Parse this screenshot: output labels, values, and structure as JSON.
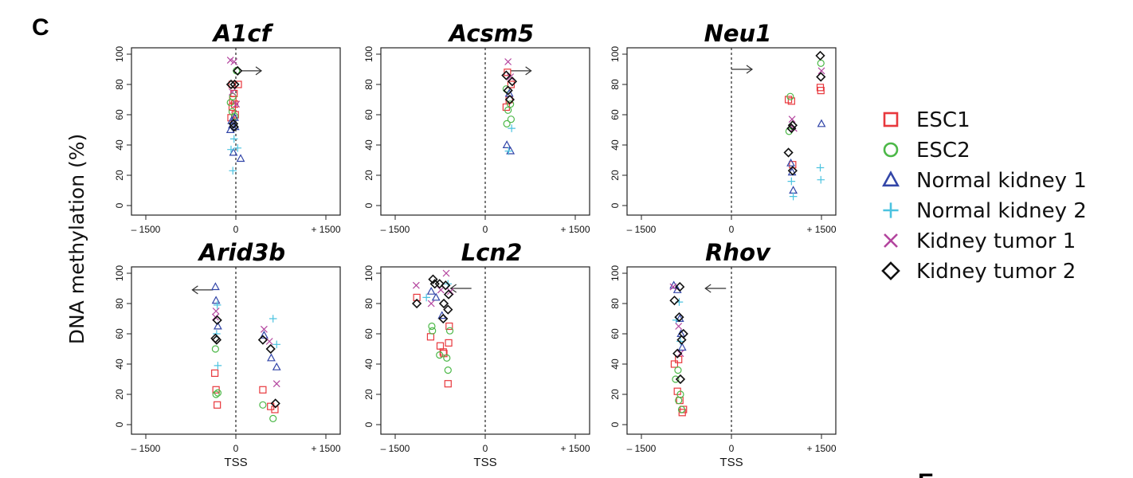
{
  "figure": {
    "panel_letter": "C",
    "next_panel_letter": "E",
    "ylabel": "DNA methylation (%)",
    "xlabel": "TSS"
  },
  "legend": [
    {
      "name": "ESC1",
      "marker": "square",
      "color": "#e8383d"
    },
    {
      "name": "ESC2",
      "marker": "circle",
      "color": "#4cb848"
    },
    {
      "name": "Normal kidney 1",
      "marker": "triangle",
      "color": "#3346a8"
    },
    {
      "name": "Normal kidney 2",
      "marker": "plus",
      "color": "#4cc3e0"
    },
    {
      "name": "Kidney tumor 1",
      "marker": "cross",
      "color": "#b3449e"
    },
    {
      "name": "Kidney tumor 2",
      "marker": "diamond",
      "color": "#111111"
    }
  ],
  "chart_data": [
    {
      "type": "scatter",
      "title": "A1cf",
      "xlim": [
        -1500,
        1500
      ],
      "ylim": [
        0,
        100
      ],
      "xticks": [
        "– 1500",
        "0",
        "+ 1500"
      ],
      "yticks": [
        "0",
        "20",
        "40",
        "60",
        "80",
        "100"
      ],
      "arrow": {
        "direction": "right",
        "x": 80,
        "y": 89
      },
      "series": [
        {
          "name": "ESC1",
          "points": [
            [
              -60,
              80
            ],
            [
              -30,
              74
            ],
            [
              -50,
              70
            ],
            [
              -20,
              67
            ],
            [
              -60,
              65
            ],
            [
              -80,
              58
            ],
            [
              40,
              80
            ],
            [
              -10,
              60
            ]
          ]
        },
        {
          "name": "ESC2",
          "points": [
            [
              -90,
              68
            ],
            [
              -50,
              72
            ],
            [
              -20,
              59
            ],
            [
              -60,
              62
            ],
            [
              10,
              89
            ]
          ]
        },
        {
          "name": "Normal kidney 1",
          "points": [
            [
              -70,
              56
            ],
            [
              -60,
              53
            ],
            [
              -20,
              58
            ],
            [
              -10,
              52
            ],
            [
              -90,
              50
            ],
            [
              -40,
              35
            ],
            [
              80,
              31
            ]
          ]
        },
        {
          "name": "Normal kidney 2",
          "points": [
            [
              -80,
              37
            ],
            [
              -30,
              44
            ],
            [
              -50,
              23
            ],
            [
              30,
              38
            ]
          ]
        },
        {
          "name": "Kidney tumor 1",
          "points": [
            [
              -90,
              96
            ],
            [
              -30,
              95
            ],
            [
              -60,
              75
            ],
            [
              10,
              67
            ]
          ]
        },
        {
          "name": "Kidney tumor 2",
          "points": [
            [
              -80,
              80
            ],
            [
              -20,
              80
            ],
            [
              -40,
              54
            ],
            [
              30,
              89
            ],
            [
              -30,
              52
            ]
          ]
        }
      ]
    },
    {
      "type": "scatter",
      "title": "Acsm5",
      "xlim": [
        -1500,
        1500
      ],
      "ylim": [
        0,
        100
      ],
      "xticks": [
        "– 1500",
        "0",
        "+ 1500"
      ],
      "yticks": [
        "0",
        "20",
        "40",
        "60",
        "80",
        "100"
      ],
      "arrow": {
        "direction": "right",
        "x": 420,
        "y": 89
      },
      "series": [
        {
          "name": "ESC1",
          "points": [
            [
              370,
              88
            ],
            [
              430,
              80
            ],
            [
              400,
              70
            ],
            [
              350,
              65
            ]
          ]
        },
        {
          "name": "ESC2",
          "points": [
            [
              350,
              77
            ],
            [
              420,
              67
            ],
            [
              380,
              63
            ],
            [
              360,
              54
            ],
            [
              430,
              57
            ]
          ]
        },
        {
          "name": "Normal kidney 1",
          "points": [
            [
              400,
              74
            ],
            [
              360,
              40
            ],
            [
              420,
              36
            ]
          ]
        },
        {
          "name": "Normal kidney 2",
          "points": [
            [
              440,
              51
            ],
            [
              390,
              36
            ]
          ]
        },
        {
          "name": "Kidney tumor 1",
          "points": [
            [
              380,
              95
            ],
            [
              420,
              85
            ]
          ]
        },
        {
          "name": "Kidney tumor 2",
          "points": [
            [
              350,
              86
            ],
            [
              450,
              82
            ],
            [
              380,
              76
            ],
            [
              410,
              70
            ]
          ]
        }
      ]
    },
    {
      "type": "scatter",
      "title": "Neu1",
      "xlim": [
        -1500,
        1500
      ],
      "ylim": [
        0,
        100
      ],
      "xticks": [
        "– 1500",
        "0",
        "+ 1500"
      ],
      "yticks": [
        "0",
        "20",
        "40",
        "60",
        "80",
        "100"
      ],
      "arrow": {
        "direction": "right",
        "x": 0,
        "y": 90
      },
      "series": [
        {
          "name": "ESC1",
          "points": [
            [
              950,
              70
            ],
            [
              1000,
              69
            ],
            [
              1480,
              78
            ],
            [
              1490,
              76
            ],
            [
              1020,
              27
            ]
          ]
        },
        {
          "name": "ESC2",
          "points": [
            [
              980,
              72
            ],
            [
              1490,
              94
            ],
            [
              960,
              49
            ]
          ]
        },
        {
          "name": "Normal kidney 1",
          "points": [
            [
              990,
              28
            ],
            [
              1010,
              22
            ],
            [
              1500,
              54
            ],
            [
              1030,
              10
            ]
          ]
        },
        {
          "name": "Normal kidney 2",
          "points": [
            [
              1480,
              25
            ],
            [
              1490,
              17
            ],
            [
              1000,
              16
            ],
            [
              1030,
              6
            ]
          ]
        },
        {
          "name": "Kidney tumor 1",
          "points": [
            [
              1500,
              89
            ],
            [
              1010,
              57
            ],
            [
              1040,
              51
            ]
          ]
        },
        {
          "name": "Kidney tumor 2",
          "points": [
            [
              1480,
              99
            ],
            [
              1490,
              85
            ],
            [
              1020,
              53
            ],
            [
              1000,
              51
            ],
            [
              950,
              35
            ],
            [
              1020,
              23
            ]
          ]
        }
      ]
    },
    {
      "type": "scatter",
      "title": "Arid3b",
      "xlim": [
        -1500,
        1500
      ],
      "ylim": [
        0,
        100
      ],
      "xticks": [
        "– 1500",
        "0",
        "+ 1500"
      ],
      "yticks": [
        "0",
        "20",
        "40",
        "60",
        "80",
        "100"
      ],
      "arrow": {
        "direction": "left",
        "x": -380,
        "y": 89
      },
      "series": [
        {
          "name": "ESC1",
          "points": [
            [
              -350,
              34
            ],
            [
              -330,
              23
            ],
            [
              -310,
              13
            ],
            [
              450,
              23
            ],
            [
              580,
              12
            ],
            [
              650,
              10
            ]
          ]
        },
        {
          "name": "ESC2",
          "points": [
            [
              -340,
              50
            ],
            [
              -330,
              20
            ],
            [
              -300,
              21
            ],
            [
              450,
              13
            ],
            [
              620,
              4
            ]
          ]
        },
        {
          "name": "Normal kidney 1",
          "points": [
            [
              -340,
              91
            ],
            [
              -330,
              82
            ],
            [
              -300,
              65
            ],
            [
              470,
              59
            ],
            [
              590,
              44
            ],
            [
              680,
              38
            ]
          ]
        },
        {
          "name": "Normal kidney 2",
          "points": [
            [
              -310,
              79
            ],
            [
              -320,
              60
            ],
            [
              -300,
              39
            ],
            [
              620,
              70
            ],
            [
              680,
              53
            ]
          ]
        },
        {
          "name": "Kidney tumor 1",
          "points": [
            [
              -330,
              75
            ],
            [
              -340,
              71
            ],
            [
              470,
              63
            ],
            [
              560,
              55
            ],
            [
              680,
              27
            ]
          ]
        },
        {
          "name": "Kidney tumor 2",
          "points": [
            [
              -310,
              69
            ],
            [
              -320,
              56
            ],
            [
              -340,
              57
            ],
            [
              450,
              56
            ],
            [
              580,
              50
            ],
            [
              660,
              14
            ]
          ]
        }
      ]
    },
    {
      "type": "scatter",
      "title": "Lcn2",
      "xlim": [
        -1500,
        1500
      ],
      "ylim": [
        0,
        100
      ],
      "xticks": [
        "– 1500",
        "0",
        "+ 1500"
      ],
      "yticks": [
        "0",
        "20",
        "40",
        "60",
        "80",
        "100"
      ],
      "arrow": {
        "direction": "left",
        "x": -230,
        "y": 90
      },
      "series": [
        {
          "name": "ESC1",
          "points": [
            [
              -1140,
              84
            ],
            [
              -910,
              58
            ],
            [
              -750,
              52
            ],
            [
              -700,
              48
            ],
            [
              -610,
              54
            ],
            [
              -620,
              27
            ],
            [
              -600,
              65
            ],
            [
              -690,
              47
            ]
          ]
        },
        {
          "name": "ESC2",
          "points": [
            [
              -890,
              65
            ],
            [
              -880,
              62
            ],
            [
              -760,
              46
            ],
            [
              -640,
              44
            ],
            [
              -620,
              36
            ],
            [
              -590,
              62
            ]
          ]
        },
        {
          "name": "Normal kidney 1",
          "points": [
            [
              -900,
              88
            ],
            [
              -820,
              84
            ],
            [
              -720,
              72
            ]
          ]
        },
        {
          "name": "Normal kidney 2",
          "points": [
            [
              -980,
              84
            ],
            [
              -620,
              93
            ]
          ]
        },
        {
          "name": "Kidney tumor 1",
          "points": [
            [
              -1150,
              92
            ],
            [
              -900,
              80
            ],
            [
              -740,
              89
            ],
            [
              -650,
              100
            ],
            [
              -580,
              88
            ]
          ]
        },
        {
          "name": "Kidney tumor 2",
          "points": [
            [
              -1140,
              80
            ],
            [
              -870,
              96
            ],
            [
              -840,
              93
            ],
            [
              -760,
              93
            ],
            [
              -660,
              92
            ],
            [
              -610,
              86
            ],
            [
              -690,
              80
            ],
            [
              -620,
              76
            ],
            [
              -700,
              70
            ]
          ]
        }
      ]
    },
    {
      "type": "scatter",
      "title": "Rhov",
      "xlim": [
        -1500,
        1500
      ],
      "ylim": [
        0,
        100
      ],
      "xticks": [
        "– 1500",
        "0",
        "+ 1500"
      ],
      "yticks": [
        "0",
        "20",
        "40",
        "60",
        "80",
        "100"
      ],
      "arrow": {
        "direction": "left",
        "x": -90,
        "y": 90
      },
      "series": [
        {
          "name": "ESC1",
          "points": [
            [
              -950,
              40
            ],
            [
              -880,
              43
            ],
            [
              -900,
              22
            ],
            [
              -860,
              16
            ],
            [
              -820,
              8
            ],
            [
              -800,
              10
            ]
          ]
        },
        {
          "name": "ESC2",
          "points": [
            [
              -930,
              30
            ],
            [
              -890,
              36
            ],
            [
              -880,
              16
            ],
            [
              -850,
              20
            ],
            [
              -830,
              10
            ]
          ]
        },
        {
          "name": "Normal kidney 1",
          "points": [
            [
              -960,
              92
            ],
            [
              -900,
              89
            ],
            [
              -860,
              70
            ],
            [
              -840,
              60
            ],
            [
              -820,
              51
            ]
          ]
        },
        {
          "name": "Normal kidney 2",
          "points": [
            [
              -920,
              69
            ],
            [
              -870,
              81
            ],
            [
              -850,
              55
            ]
          ]
        },
        {
          "name": "Kidney tumor 1",
          "points": [
            [
              -970,
              91
            ],
            [
              -880,
              65
            ],
            [
              -850,
              47
            ]
          ]
        },
        {
          "name": "Kidney tumor 2",
          "points": [
            [
              -950,
              82
            ],
            [
              -860,
              91
            ],
            [
              -870,
              71
            ],
            [
              -800,
              60
            ],
            [
              -830,
              56
            ],
            [
              -900,
              47
            ],
            [
              -850,
              30
            ]
          ]
        }
      ]
    }
  ]
}
